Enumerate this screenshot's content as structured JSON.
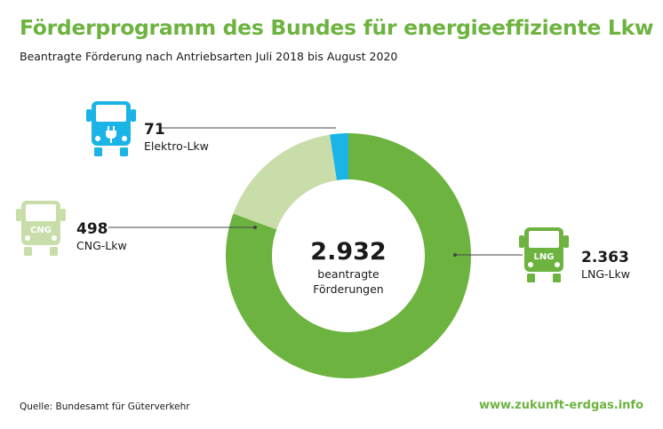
{
  "header": {
    "title": "Förderprogramm des Bundes für energieeffiziente Lkw",
    "subtitle": "Beantragte Förderung nach Antriebsarten Juli 2018 bis August 2020"
  },
  "center": {
    "total": "2.932",
    "caption_line1": "beantragte",
    "caption_line2": "Förderungen"
  },
  "chart_data": {
    "type": "pie",
    "total": 2932,
    "categories": [
      "LNG-Lkw",
      "CNG-Lkw",
      "Elektro-Lkw"
    ],
    "values": [
      2363,
      498,
      71
    ],
    "value_labels": [
      "2.363",
      "498",
      "71"
    ],
    "colors": [
      "#6db33f",
      "#c9ddaa",
      "#1ab4e6"
    ]
  },
  "icons": {
    "electric": {
      "name": "electric-truck-icon",
      "color": "#1ab4e6"
    },
    "cng": {
      "name": "cng-truck-icon",
      "text": "CNG",
      "color": "#c9ddaa"
    },
    "lng": {
      "name": "lng-truck-icon",
      "text": "LNG",
      "color": "#6db33f"
    }
  },
  "footer": {
    "source": "Quelle: Bundesamt für Güterverkehr",
    "website": "www.zukunft-erdgas.info"
  }
}
